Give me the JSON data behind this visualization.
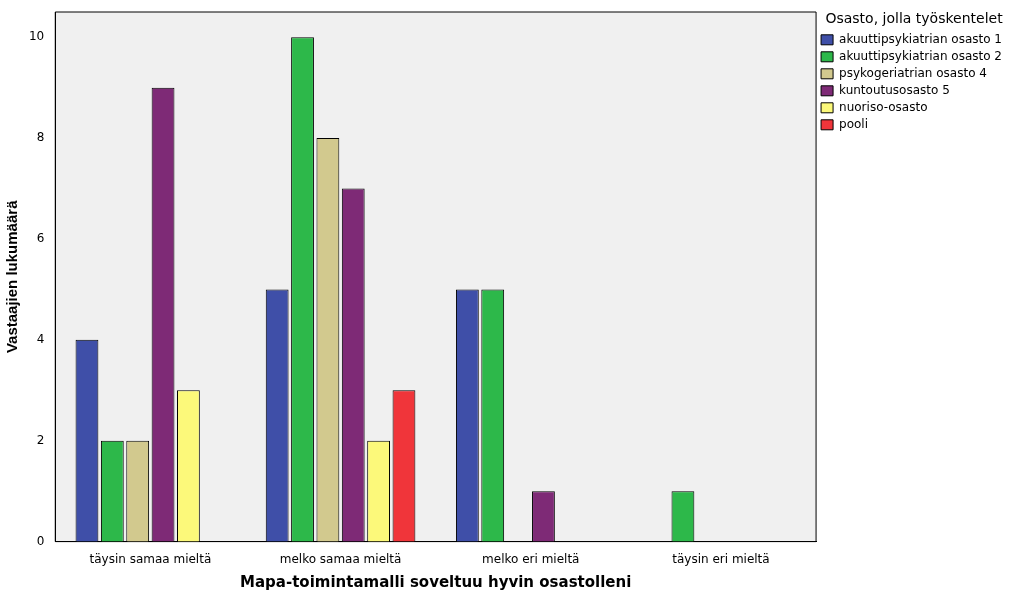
{
  "chart_data": {
    "type": "bar",
    "xlabel": "Mapa-toimintamalli soveltuu hyvin osastolleni",
    "ylabel": "Vastaajien lukumäärä",
    "legend_title": "Osasto, jolla työskentelet",
    "legend": "right",
    "grid": false,
    "categories": [
      "täysin samaa mieltä",
      "melko samaa mieltä",
      "melko eri mieltä",
      "täysin eri mieltä"
    ],
    "ylim": [
      0,
      10.5
    ],
    "yticks": [
      0,
      2,
      4,
      6,
      8,
      10
    ],
    "series": [
      {
        "name": "akuuttipsykiatrian osasto 1",
        "color": "#3f4fa8",
        "values": [
          4,
          5,
          5,
          0
        ]
      },
      {
        "name": "akuuttipsykiatrian osasto 2",
        "color": "#2db84a",
        "values": [
          2,
          10,
          5,
          1
        ]
      },
      {
        "name": "psykogeriatrian osasto 4",
        "color": "#d2c98e",
        "values": [
          2,
          8,
          0,
          0
        ]
      },
      {
        "name": "kuntoutusosasto 5",
        "color": "#7e2a76",
        "values": [
          9,
          7,
          1,
          0
        ]
      },
      {
        "name": "nuoriso-osasto",
        "color": "#fcf97a",
        "values": [
          3,
          2,
          0,
          0
        ]
      },
      {
        "name": "pooli",
        "color": "#f0353a",
        "values": [
          0,
          3,
          0,
          0
        ]
      }
    ]
  }
}
